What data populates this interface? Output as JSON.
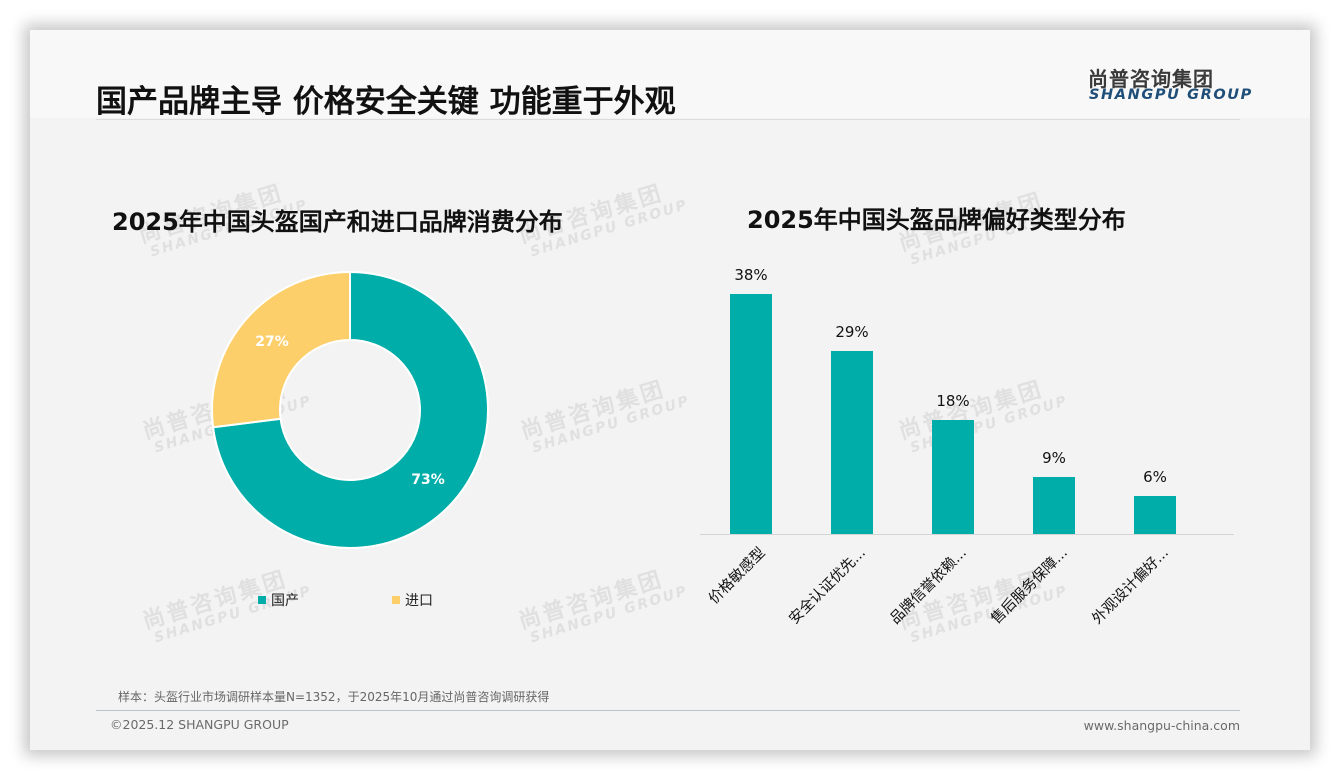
{
  "header": {
    "title": "国产品牌主导 价格安全关键 功能重于外观",
    "logo_cn": "尚普咨询集团",
    "logo_en": "SHANGPU GROUP"
  },
  "watermark": {
    "cn": "尚普咨询集团",
    "en": "SHANGPU GROUP"
  },
  "colors": {
    "primary": "#00ada8",
    "secondary": "#fdcf6a",
    "logo_blue": "#1f4e79"
  },
  "left_chart": {
    "title": "2025年中国头盔国产和进口品牌消费分布",
    "legend": [
      {
        "label": "国产",
        "color": "#00ada8"
      },
      {
        "label": "进口",
        "color": "#fdcf6a"
      }
    ],
    "labels": [
      "73%",
      "27%"
    ]
  },
  "right_chart": {
    "title": "2025年中国头盔品牌偏好类型分布",
    "value_labels": [
      "38%",
      "29%",
      "18%",
      "9%",
      "6%"
    ],
    "category_labels": [
      "价格敏感型",
      "安全认证优先...",
      "品牌信誉依赖...",
      "售后服务保障...",
      "外观设计偏好..."
    ]
  },
  "chart_data": [
    {
      "type": "pie",
      "variant": "donut",
      "title": "2025年中国头盔国产和进口品牌消费分布",
      "categories": [
        "国产",
        "进口"
      ],
      "values": [
        73,
        27
      ],
      "unit": "%",
      "colors": [
        "#00ada8",
        "#fdcf6a"
      ],
      "legend_position": "bottom"
    },
    {
      "type": "bar",
      "title": "2025年中国头盔品牌偏好类型分布",
      "categories": [
        "价格敏感型",
        "安全认证优先...",
        "品牌信誉依赖...",
        "售后服务保障...",
        "外观设计偏好..."
      ],
      "values": [
        38,
        29,
        18,
        9,
        6
      ],
      "unit": "%",
      "xlabel": "",
      "ylabel": "",
      "ylim": [
        0,
        40
      ],
      "grid": false,
      "color": "#00ada8"
    }
  ],
  "footer": {
    "note": "样本：头盔行业市场调研样本量N=1352，于2025年10月通过尚普咨询调研获得",
    "copyright": "©2025.12 SHANGPU GROUP",
    "website": "www.shangpu-china.com"
  }
}
